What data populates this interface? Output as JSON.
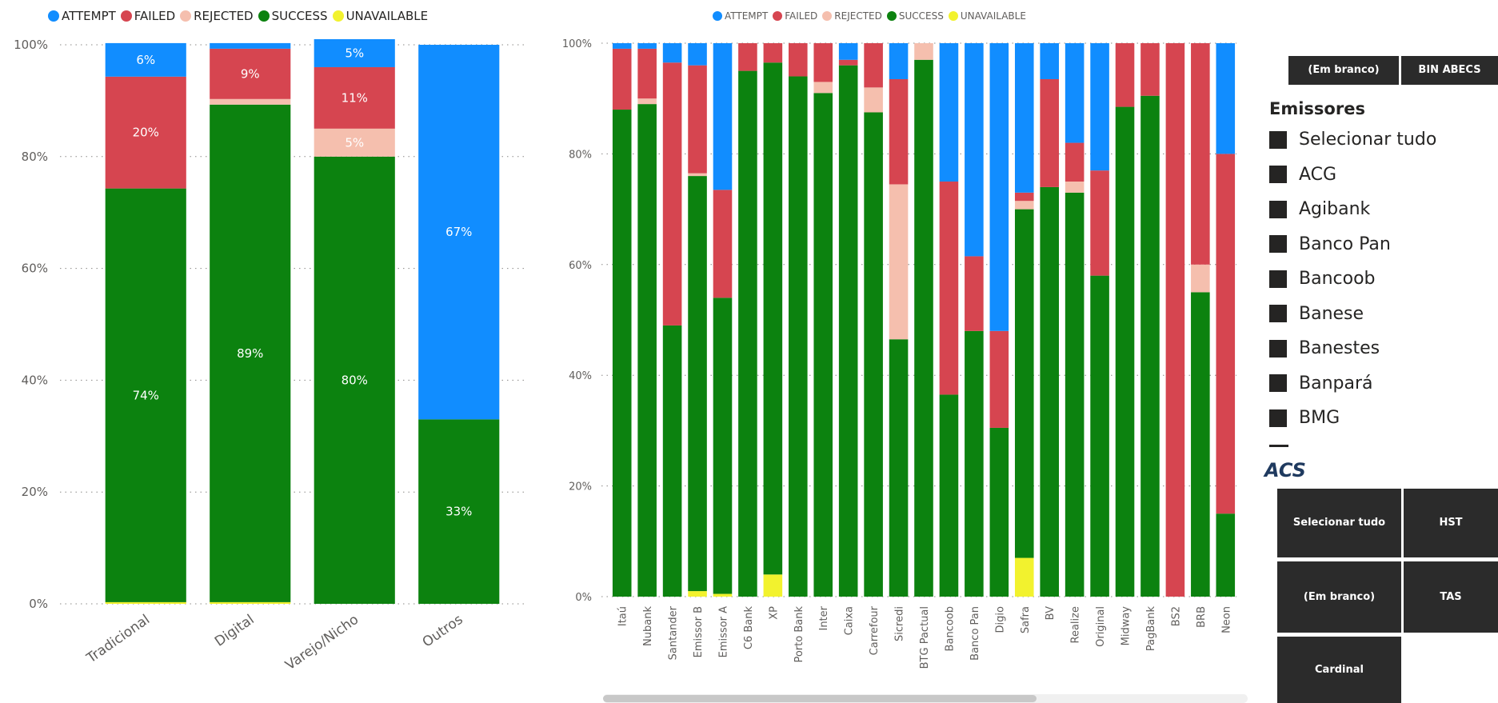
{
  "colors": {
    "ATTEMPT": "#118DFF",
    "FAILED": "#D64550",
    "REJECTED": "#F5BFAE",
    "SUCCESS": "#0C820F",
    "UNAVAILABLE": "#F2F22E"
  },
  "legend": [
    "ATTEMPT",
    "FAILED",
    "REJECTED",
    "SUCCESS",
    "UNAVAILABLE"
  ],
  "chart_data": [
    {
      "type": "bar",
      "stacked": true,
      "categories": [
        "Tradicional",
        "Digital",
        "Varejo/Nicho",
        "Outros"
      ],
      "series": [
        {
          "name": "UNAVAILABLE",
          "values": [
            0.3,
            0.3,
            0,
            0
          ]
        },
        {
          "name": "SUCCESS",
          "values": [
            74,
            89,
            80,
            33
          ]
        },
        {
          "name": "REJECTED",
          "values": [
            0,
            1,
            5,
            0
          ]
        },
        {
          "name": "FAILED",
          "values": [
            20,
            9,
            11,
            0
          ]
        },
        {
          "name": "ATTEMPT",
          "values": [
            6,
            1,
            5,
            67
          ]
        }
      ],
      "labels": {
        "SUCCESS": [
          "74%",
          "89%",
          "80%",
          "33%"
        ],
        "REJECTED": [
          "",
          "",
          "5%",
          ""
        ],
        "FAILED": [
          "20%",
          "9%",
          "11%",
          ""
        ],
        "ATTEMPT": [
          "6%",
          "",
          "5%",
          "67%"
        ]
      },
      "yticks": [
        "0%",
        "20%",
        "40%",
        "60%",
        "80%",
        "100%"
      ],
      "ylim": [
        0,
        100
      ],
      "legend": "top-left"
    },
    {
      "type": "bar",
      "stacked": true,
      "categories": [
        "Itaú",
        "Nubank",
        "Santander",
        "Emissor B",
        "Emissor A",
        "C6 Bank",
        "XP",
        "Porto Bank",
        "Inter",
        "Caixa",
        "Carrefour",
        "Sicredi",
        "BTG Pactual",
        "Bancoob",
        "Banco Pan",
        "Digio",
        "Safra",
        "BV",
        "Realize",
        "Original",
        "Midway",
        "PagBank",
        "BS2",
        "BRB",
        "Neon"
      ],
      "series": [
        {
          "name": "UNAVAILABLE",
          "values": [
            0,
            0,
            0,
            1,
            0.5,
            0,
            4,
            0,
            0,
            0,
            0,
            0,
            0,
            0,
            0,
            0,
            7,
            0,
            0,
            0,
            0,
            0,
            0,
            0,
            0
          ]
        },
        {
          "name": "SUCCESS",
          "values": [
            88,
            89,
            49,
            75,
            53.5,
            95,
            92.5,
            94,
            91,
            96,
            87.5,
            46.5,
            97,
            36.5,
            48,
            30.5,
            63,
            74,
            73,
            58,
            88.5,
            90.5,
            0,
            55,
            15
          ]
        },
        {
          "name": "REJECTED",
          "values": [
            0,
            1,
            0,
            0.5,
            0,
            0,
            0,
            0,
            2,
            0,
            4.5,
            28,
            3,
            0,
            0,
            0,
            1.5,
            0,
            2,
            0,
            0,
            0,
            0,
            5,
            0
          ]
        },
        {
          "name": "FAILED",
          "values": [
            11,
            9,
            47.5,
            19.5,
            19.5,
            5,
            3.5,
            6,
            7,
            1,
            8,
            19,
            0,
            38.5,
            13.5,
            17.5,
            1.5,
            19.5,
            7,
            19,
            11.5,
            9.5,
            100,
            40,
            65
          ]
        },
        {
          "name": "ATTEMPT",
          "values": [
            1,
            1,
            3.5,
            4,
            26.5,
            0,
            0,
            0,
            0,
            3,
            0,
            6.5,
            0,
            25,
            38.5,
            52,
            27,
            6.5,
            18,
            23,
            0,
            0,
            0,
            0,
            20
          ]
        }
      ],
      "yticks": [
        "0%",
        "20%",
        "40%",
        "60%",
        "80%",
        "100%"
      ],
      "ylim": [
        0,
        100
      ],
      "legend": "top-center"
    }
  ],
  "slicer_top": {
    "buttons": [
      "(Em branco)",
      "BIN ABECS"
    ]
  },
  "emissores": {
    "title": "Emissores",
    "items": [
      "Selecionar tudo",
      "ACG",
      "Agibank",
      "Banco Pan",
      "Bancoob",
      "Banese",
      "Banestes",
      "Banpará",
      "BMG"
    ]
  },
  "acs": {
    "title": "ACS",
    "buttons": [
      "Selecionar tudo",
      "HST",
      "(Em branco)",
      "TAS",
      "Cardinal"
    ]
  }
}
